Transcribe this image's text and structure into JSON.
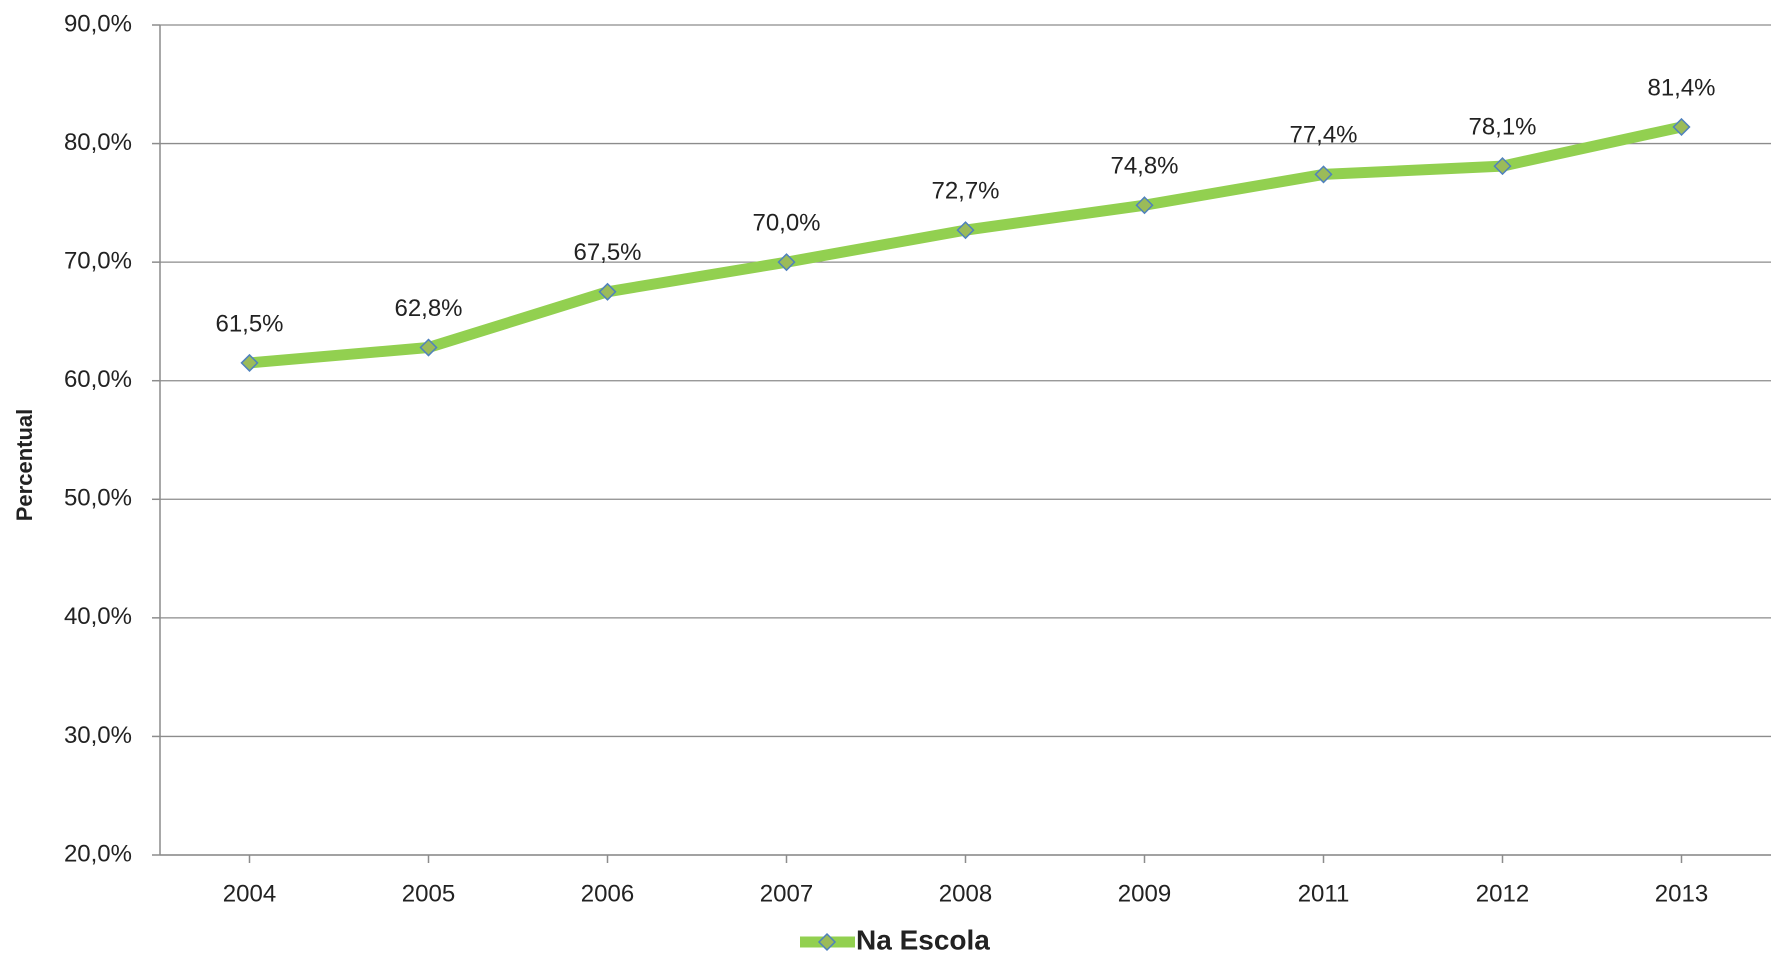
{
  "chart_data": {
    "type": "line",
    "y_label": "Percentual",
    "categories": [
      "2004",
      "2005",
      "2006",
      "2007",
      "2008",
      "2009",
      "2011",
      "2012",
      "2013"
    ],
    "series": [
      {
        "name": "Na Escola",
        "color": "#92d050",
        "marker_color": "#9bbb59",
        "marker_edge": "#4f81bd",
        "values": [
          61.5,
          62.8,
          67.5,
          70.0,
          72.7,
          74.8,
          77.4,
          78.1,
          81.4
        ],
        "value_labels": [
          "61,5%",
          "62,8%",
          "67,5%",
          "70,0%",
          "72,7%",
          "74,8%",
          "77,4%",
          "78,1%",
          "81,4%"
        ]
      }
    ],
    "ylim": [
      20,
      90
    ],
    "yticks": [
      {
        "value": 20,
        "label": "20,0%"
      },
      {
        "value": 30,
        "label": "30,0%"
      },
      {
        "value": 40,
        "label": "40,0%"
      },
      {
        "value": 50,
        "label": "50,0%"
      },
      {
        "value": 60,
        "label": "60,0%"
      },
      {
        "value": 70,
        "label": "70,0%"
      },
      {
        "value": 80,
        "label": "80,0%"
      },
      {
        "value": 90,
        "label": "90,0%"
      }
    ],
    "grid": true,
    "legend": "bottom"
  }
}
